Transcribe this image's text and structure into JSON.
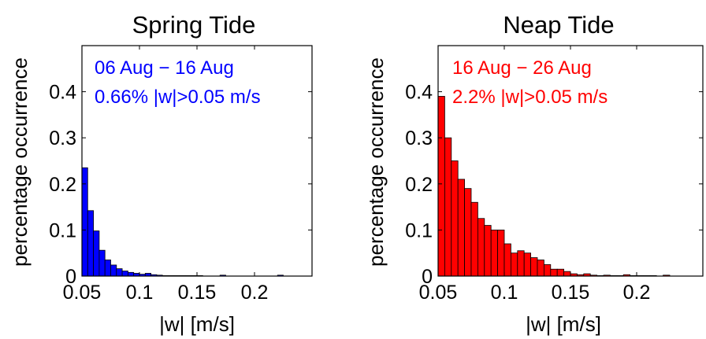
{
  "chart_data": [
    {
      "type": "bar",
      "title": "Spring Tide",
      "xlabel": "|w| [m/s]",
      "ylabel": "percentage occurrence",
      "xlim": [
        0.05,
        0.25
      ],
      "ylim": [
        0,
        0.5
      ],
      "xticks": [
        "0.05",
        "0.1",
        "0.15",
        "0.2"
      ],
      "yticks": [
        "0",
        "0.1",
        "0.2",
        "0.3",
        "0.4"
      ],
      "annotations": [
        "06 Aug − 16 Aug",
        "0.66% |w|>0.05 m/s"
      ],
      "color": "#0000ff",
      "bin_width": 0.005,
      "x": [
        0.0525,
        0.0575,
        0.0625,
        0.0675,
        0.0725,
        0.0775,
        0.0825,
        0.0875,
        0.0925,
        0.0975,
        0.1025,
        0.1075,
        0.1125,
        0.1175,
        0.1225,
        0.1275,
        0.1325,
        0.1375,
        0.1425,
        0.1475,
        0.1525,
        0.1575,
        0.1625,
        0.1675,
        0.1725,
        0.1775,
        0.1825,
        0.1875,
        0.1925,
        0.1975,
        0.2025,
        0.2075,
        0.2125,
        0.2175,
        0.2225,
        0.2275
      ],
      "values": [
        0.235,
        0.142,
        0.098,
        0.056,
        0.035,
        0.024,
        0.016,
        0.011,
        0.008,
        0.006,
        0.004,
        0.006,
        0.003,
        0.002,
        0.001,
        0.001,
        0.001,
        0.001,
        0.001,
        0.001,
        0.001,
        0,
        0,
        0,
        0.002,
        0,
        0,
        0,
        0,
        0,
        0,
        0,
        0,
        0,
        0.002,
        0
      ]
    },
    {
      "type": "bar",
      "title": "Neap Tide",
      "xlabel": "|w| [m/s]",
      "ylabel": "percentage occurrence",
      "xlim": [
        0.05,
        0.25
      ],
      "ylim": [
        0,
        0.5
      ],
      "xticks": [
        "0.05",
        "0.1",
        "0.15",
        "0.2"
      ],
      "yticks": [
        "0",
        "0.1",
        "0.2",
        "0.3",
        "0.4"
      ],
      "annotations": [
        "16 Aug − 26 Aug",
        "2.2% |w|>0.05 m/s"
      ],
      "color": "#ff0000",
      "bin_width": 0.005,
      "x": [
        0.0525,
        0.0575,
        0.0625,
        0.0675,
        0.0725,
        0.0775,
        0.0825,
        0.0875,
        0.0925,
        0.0975,
        0.1025,
        0.1075,
        0.1125,
        0.1175,
        0.1225,
        0.1275,
        0.1325,
        0.1375,
        0.1425,
        0.1475,
        0.1525,
        0.1575,
        0.1625,
        0.1675,
        0.1725,
        0.1775,
        0.1825,
        0.1875,
        0.1925,
        0.1975,
        0.2025,
        0.2075,
        0.2125,
        0.2175,
        0.2225,
        0.2275
      ],
      "values": [
        0.39,
        0.3,
        0.25,
        0.21,
        0.19,
        0.16,
        0.125,
        0.11,
        0.1,
        0.1,
        0.07,
        0.05,
        0.055,
        0.05,
        0.04,
        0.035,
        0.025,
        0.015,
        0.015,
        0.01,
        0.005,
        0.003,
        0.005,
        0.002,
        0.001,
        0.002,
        0.001,
        0.001,
        0.003,
        0.001,
        0.001,
        0.001,
        0.001,
        0,
        0.002,
        0
      ]
    }
  ]
}
